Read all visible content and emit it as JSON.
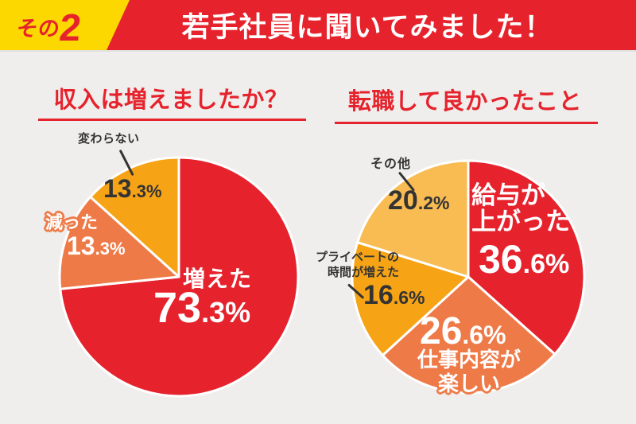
{
  "page": {
    "background": "#efeeec",
    "accent_red": "#e6232d",
    "dark_text": "#333333"
  },
  "header": {
    "badge_prefix": "その",
    "badge_number": "2",
    "badge_bg": "#fcd800",
    "title": "若手社員に聞いてみました！",
    "bg": "#e6232d"
  },
  "chart_data": [
    {
      "type": "pie",
      "title": "収入は増えましたか？",
      "start_angle_deg": -90,
      "direction": "clockwise",
      "slices": [
        {
          "label": "増えた",
          "value": 73.3,
          "color": "#e6232d",
          "pct_int": "73",
          "pct_dec": ".3%"
        },
        {
          "label": "減った",
          "value": 13.3,
          "color": "#ee7a48",
          "pct_int": "13",
          "pct_dec": ".3%"
        },
        {
          "label": "変わらない",
          "value": 13.3,
          "color": "#f6a316",
          "pct_int": "13",
          "pct_dec": ".3%"
        }
      ]
    },
    {
      "type": "pie",
      "title": "転職して良かったこと",
      "start_angle_deg": -90,
      "direction": "clockwise",
      "slices": [
        {
          "label": "給与が上がった",
          "label_lines": [
            "給与が",
            "上がった"
          ],
          "value": 36.6,
          "color": "#e6232d",
          "pct_int": "36",
          "pct_dec": ".6%"
        },
        {
          "label": "仕事内容が楽しい",
          "label_lines": [
            "仕事内容が",
            "楽しい"
          ],
          "value": 26.6,
          "color": "#ee7a48",
          "pct_int": "26",
          "pct_dec": ".6%"
        },
        {
          "label": "プライベートの時間が増えた",
          "label_lines": [
            "プライベートの",
            "時間が増えた"
          ],
          "value": 16.6,
          "color": "#f6a316",
          "pct_int": "16",
          "pct_dec": ".6%"
        },
        {
          "label": "その他",
          "value": 20.2,
          "color": "#f8bc52",
          "pct_int": "20",
          "pct_dec": ".2%"
        }
      ]
    }
  ]
}
